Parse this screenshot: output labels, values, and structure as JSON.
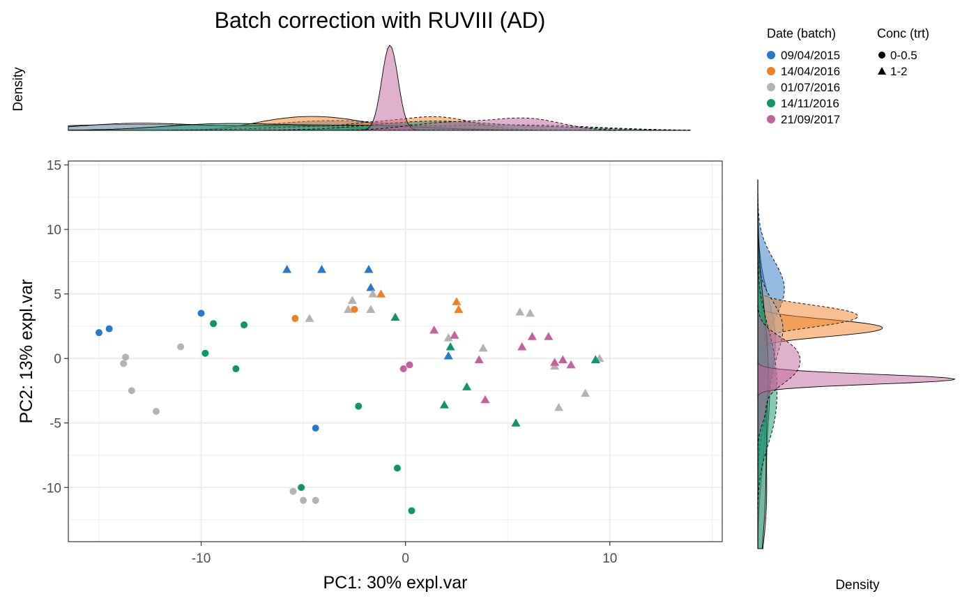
{
  "chart_data": {
    "type": "scatter",
    "title": "Batch correction with RUVIII (AD)",
    "xlabel": "PC1: 30% expl.var",
    "ylabel": "PC2: 13% expl.var",
    "xlim": [
      -16.5,
      15.5
    ],
    "ylim": [
      -14.2,
      15.3
    ],
    "x_ticks": [
      -10,
      0,
      10
    ],
    "y_ticks": [
      -10,
      -5,
      0,
      5,
      10,
      15
    ],
    "grid": true,
    "legend_position": "top-right",
    "top_density_label": "Density",
    "right_density_label": "Density",
    "color_legend": {
      "title": "Date (batch)",
      "entries": [
        {
          "label": "09/04/2015",
          "color": "#2b78c5"
        },
        {
          "label": "14/04/2016",
          "color": "#f07f26"
        },
        {
          "label": "01/07/2016",
          "color": "#b3b3b3"
        },
        {
          "label": "14/11/2016",
          "color": "#12936a"
        },
        {
          "label": "21/09/2017",
          "color": "#c1649b"
        }
      ]
    },
    "shape_legend": {
      "title": "Conc (trt)",
      "entries": [
        {
          "label": "0-0.5",
          "shape": "circle"
        },
        {
          "label": "1-2",
          "shape": "triangle"
        }
      ]
    },
    "series": [
      {
        "batch": "09/04/2015",
        "conc": "0-0.5",
        "x": [
          -15.0,
          -14.5,
          -10.0,
          -4.4
        ],
        "y": [
          2.0,
          2.3,
          3.5,
          -5.4
        ]
      },
      {
        "batch": "09/04/2015",
        "conc": "1-2",
        "x": [
          -5.8,
          -4.1,
          -1.8,
          -1.7,
          2.1
        ],
        "y": [
          6.9,
          6.9,
          6.9,
          5.5,
          0.2
        ]
      },
      {
        "batch": "14/04/2016",
        "conc": "0-0.5",
        "x": [
          -5.4,
          -2.5
        ],
        "y": [
          3.1,
          3.8
        ]
      },
      {
        "batch": "14/04/2016",
        "conc": "1-2",
        "x": [
          -1.2,
          2.5,
          2.6
        ],
        "y": [
          5.0,
          4.4,
          3.8
        ]
      },
      {
        "batch": "01/07/2016",
        "conc": "0-0.5",
        "x": [
          -13.7,
          -13.8,
          -13.4,
          -12.2,
          -11.0,
          -5.5,
          -5.0,
          -4.4
        ],
        "y": [
          0.1,
          -0.4,
          -2.5,
          -4.1,
          0.9,
          -10.3,
          -11.0,
          -11.0
        ]
      },
      {
        "batch": "01/07/2016",
        "conc": "1-2",
        "x": [
          -4.7,
          -2.8,
          -2.6,
          -1.6,
          -1.7,
          2.1,
          3.8,
          5.6,
          6.1,
          7.3,
          7.5,
          8.8,
          9.5
        ],
        "y": [
          3.1,
          3.8,
          4.5,
          5.0,
          3.8,
          1.6,
          0.8,
          3.6,
          3.5,
          -0.6,
          -3.8,
          -2.7,
          0.0
        ]
      },
      {
        "batch": "14/11/2016",
        "conc": "0-0.5",
        "x": [
          -9.8,
          -9.4,
          -8.3,
          -7.9,
          -5.1,
          -2.3,
          -0.4,
          0.3
        ],
        "y": [
          0.4,
          2.7,
          -0.8,
          2.6,
          -10.0,
          -3.7,
          -8.5,
          -11.8
        ]
      },
      {
        "batch": "14/11/2016",
        "conc": "1-2",
        "x": [
          -0.5,
          1.9,
          2.2,
          3.0,
          5.4,
          9.3
        ],
        "y": [
          3.2,
          -3.6,
          0.9,
          -2.2,
          -5.0,
          -0.1
        ]
      },
      {
        "batch": "21/09/2017",
        "conc": "0-0.5",
        "x": [
          -0.1,
          0.2
        ],
        "y": [
          -0.8,
          -0.5
        ]
      },
      {
        "batch": "21/09/2017",
        "conc": "1-2",
        "x": [
          1.4,
          2.4,
          3.6,
          3.9,
          5.7,
          6.2,
          7.0,
          7.3,
          7.7,
          8.1
        ],
        "y": [
          2.2,
          1.8,
          -0.1,
          -3.2,
          0.9,
          1.7,
          1.7,
          -0.3,
          -0.1,
          -0.5
        ]
      }
    ]
  }
}
